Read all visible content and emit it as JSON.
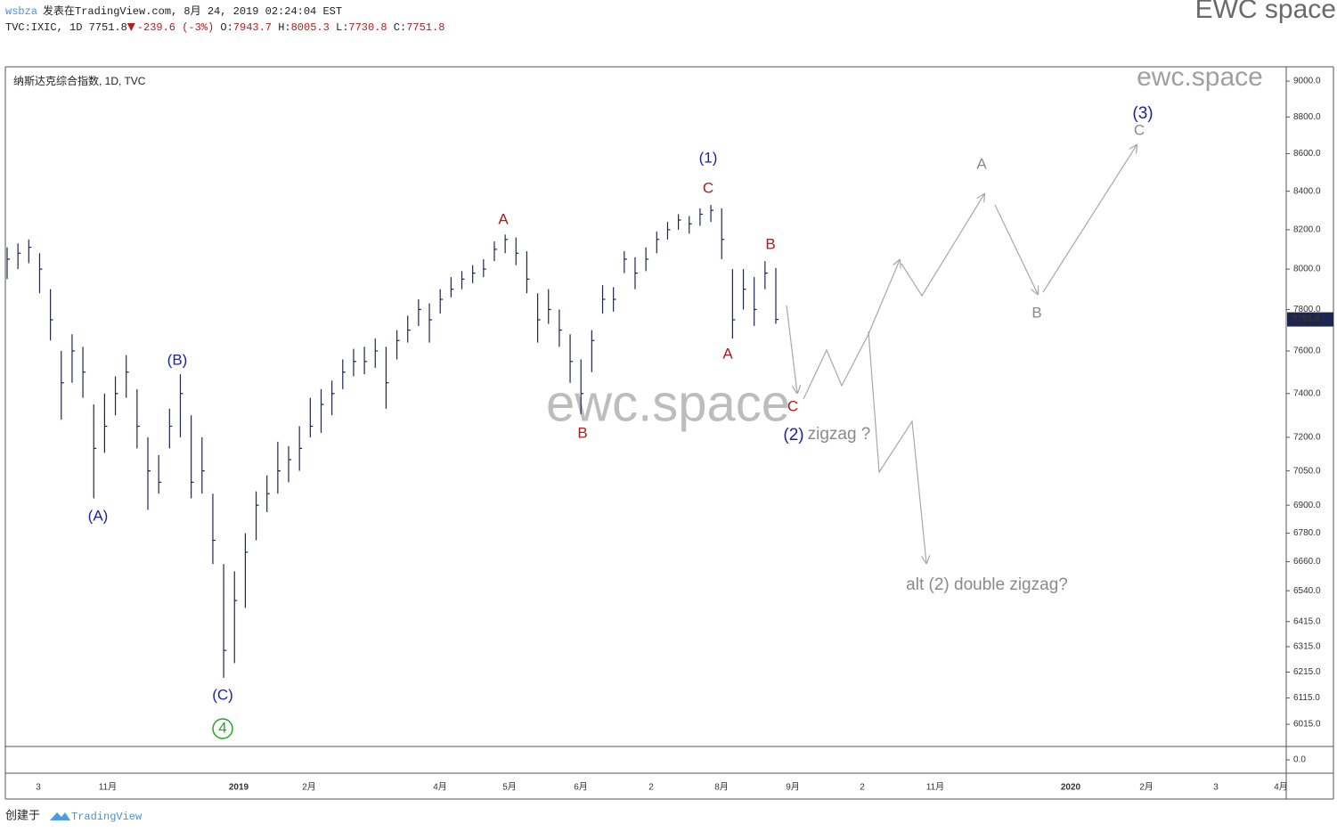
{
  "chart_data": {
    "type": "ohlc",
    "author": "wsbza",
    "published": "发表在TradingView.com, 8月 24, 2019 02:24:04 EST",
    "quote": {
      "symbol": "TVC:IXIC, 1D",
      "last": 7751.8,
      "change": -239.6,
      "change_pct": "(-3%)",
      "fields": [
        {
          "name": "O:",
          "value": 7943.7
        },
        {
          "name": "H:",
          "value": 8005.3
        },
        {
          "name": "L:",
          "value": 7730.8
        },
        {
          "name": "C:",
          "value": 7751.8
        }
      ]
    },
    "title": "纳斯达克综合指数, 1D, TVC",
    "watermarks": [
      "EWC space",
      "ewc.space",
      "ewc.space"
    ],
    "last_price_label": {
      "value": 7751.8,
      "label": "7751.8"
    },
    "log_scale": true,
    "bar_color": "#1e2650",
    "ylim": [
      5932,
      9081
    ],
    "yticks": [
      {
        "value": 9000,
        "label": "9000.0"
      },
      {
        "value": 8800,
        "label": "8800.0"
      },
      {
        "value": 8600,
        "label": "8600.0"
      },
      {
        "value": 8400,
        "label": "8400.0"
      },
      {
        "value": 8200,
        "label": "8200.0"
      },
      {
        "value": 8000,
        "label": "8000.0"
      },
      {
        "value": 7800,
        "label": "7800.0"
      },
      {
        "value": 7600,
        "label": "7600.0"
      },
      {
        "value": 7400,
        "label": "7400.0"
      },
      {
        "value": 7200,
        "label": "7200.0"
      },
      {
        "value": 7050,
        "label": "7050.0"
      },
      {
        "value": 6900,
        "label": "6900.0"
      },
      {
        "value": 6780,
        "label": "6780.0"
      },
      {
        "value": 6660,
        "label": "6660.0"
      },
      {
        "value": 6540,
        "label": "6540.0"
      },
      {
        "value": 6415,
        "label": "6415.0"
      },
      {
        "value": 6315,
        "label": "6315.0"
      },
      {
        "value": 6215,
        "label": "6215.0"
      },
      {
        "value": 6115,
        "label": "6115.0"
      },
      {
        "value": 6015,
        "label": "6015.0"
      }
    ],
    "lower_pane": {
      "yticks": [
        {
          "value": 0,
          "label": "0.0"
        }
      ]
    },
    "x_axis_labels": [
      "3",
      "11月",
      "2019",
      "2月",
      "4月",
      "5月",
      "6月",
      "2",
      "8月",
      "9月",
      "2",
      "11月",
      "2020",
      "2月",
      "3",
      "4月"
    ],
    "high": [
      8110,
      8130,
      8150,
      8080,
      7900,
      7600,
      7680,
      7620,
      7350,
      7400,
      7480,
      7580,
      7420,
      7200,
      7120,
      7330,
      7490,
      7300,
      7200,
      6950,
      6650,
      6620,
      6780,
      6960,
      7030,
      7180,
      7160,
      7250,
      7380,
      7420,
      7460,
      7560,
      7610,
      7620,
      7660,
      7620,
      7700,
      7770,
      7850,
      7830,
      7900,
      7960,
      7990,
      8020,
      8050,
      8140,
      8175,
      8160,
      8090,
      7880,
      7900,
      7800,
      7680,
      7560,
      7700,
      7920,
      7910,
      8090,
      8060,
      8110,
      8190,
      8240,
      8280,
      8270,
      8310,
      8328,
      8310,
      8000,
      8000,
      7960,
      8040,
      8005.3
    ],
    "low": [
      7950,
      8000,
      8030,
      7880,
      7650,
      7280,
      7450,
      7380,
      6930,
      7130,
      7300,
      7380,
      7150,
      6880,
      6950,
      7150,
      7200,
      6930,
      6950,
      6650,
      6193,
      6250,
      6470,
      6750,
      6870,
      6950,
      7000,
      7050,
      7200,
      7220,
      7300,
      7420,
      7480,
      7490,
      7520,
      7330,
      7560,
      7640,
      7720,
      7640,
      7780,
      7860,
      7900,
      7930,
      7960,
      8040,
      8080,
      8020,
      7880,
      7640,
      7730,
      7620,
      7450,
      7305,
      7500,
      7780,
      7790,
      7980,
      7900,
      7990,
      8080,
      8150,
      8200,
      8180,
      8220,
      8240,
      8050,
      7659,
      7800,
      7720,
      7900,
      7730.8
    ],
    "close": [
      8050,
      8080,
      8110,
      8000,
      7750,
      7450,
      7600,
      7500,
      7150,
      7250,
      7400,
      7500,
      7250,
      7050,
      7000,
      7250,
      7400,
      7000,
      7050,
      6750,
      6300,
      6500,
      6700,
      6900,
      6950,
      7050,
      7100,
      7150,
      7250,
      7350,
      7400,
      7500,
      7550,
      7550,
      7600,
      7450,
      7650,
      7700,
      7800,
      7750,
      7850,
      7900,
      7950,
      7980,
      8000,
      8100,
      8150,
      8080,
      7950,
      7750,
      7800,
      7700,
      7550,
      7400,
      7650,
      7850,
      7850,
      8050,
      7980,
      8050,
      8150,
      8200,
      8250,
      8230,
      8280,
      8300,
      8150,
      7750,
      7900,
      7800,
      7980,
      7751.8
    ],
    "wave_labels": [
      {
        "text": "(A)",
        "color": "#1a22b0"
      },
      {
        "text": "(B)",
        "color": "#1a22b0"
      },
      {
        "text": "(C)",
        "color": "#1a22b0"
      },
      {
        "text": "4",
        "color": "#22a822"
      },
      {
        "text": "A",
        "color": "#b0191e"
      },
      {
        "text": "B",
        "color": "#b0191e"
      },
      {
        "text": "C",
        "color": "#b0191e"
      },
      {
        "text": "(1)",
        "color": "#1a22b0"
      },
      {
        "text": "A",
        "color": "#b0191e"
      },
      {
        "text": "B",
        "color": "#b0191e"
      },
      {
        "text": "C",
        "color": "#b0191e"
      },
      {
        "text": "(2)",
        "color": "#1a22b0"
      },
      {
        "text": "zigzag ?",
        "color": "#8a8a8a"
      },
      {
        "text": "A",
        "color": "#8a8a8a"
      },
      {
        "text": "B",
        "color": "#8a8a8a"
      },
      {
        "text": "C",
        "color": "#8a8a8a"
      },
      {
        "text": "(3)",
        "color": "#1a22b0"
      },
      {
        "text": "alt (2) double zigzag?",
        "color": "#8a8a8a"
      }
    ],
    "footer": {
      "created": "创建于",
      "brand": "TradingView"
    }
  }
}
